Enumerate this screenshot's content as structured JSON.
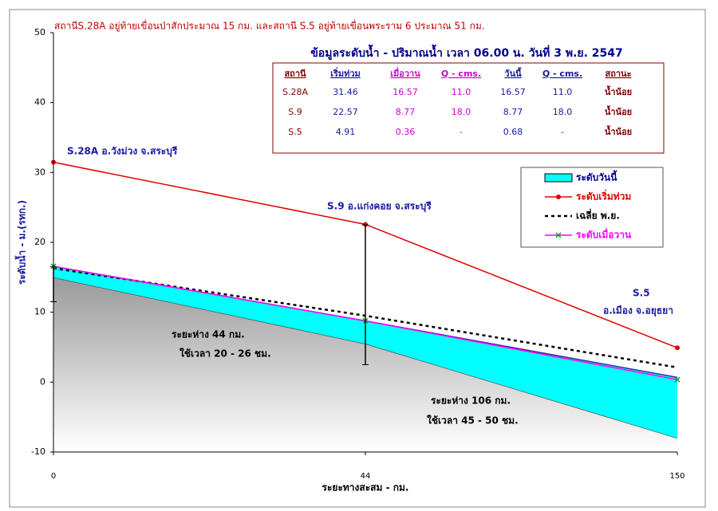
{
  "title": "สถานีS.28A อยู่ท้ายเขื่อนป่าสักประมาณ 15 กม. และสถานี S.5 อยู่ท้ายเขื่อนพระราม 6  ประมาณ 51 กม.",
  "chart_data": {
    "type": "line",
    "categories": [
      "0",
      "44",
      "150"
    ],
    "x_label": "ระยะทางสะสม - กม.",
    "y_label": "ระดับน้ำ - ม.(รทก.)",
    "ylim": [
      -10,
      50
    ],
    "yticks": [
      -10,
      0,
      10,
      20,
      30,
      40,
      50
    ],
    "series": [
      {
        "name": "ระดับวันนี้",
        "type": "area",
        "color": "#00ffff",
        "values": [
          16.57,
          8.77,
          0.68
        ]
      },
      {
        "name": "ระดับเริ่มท่วม",
        "type": "line",
        "color": "#e00000",
        "values": [
          31.46,
          22.57,
          4.91
        ]
      },
      {
        "name": "เฉลี่ย พ.ย.",
        "type": "dashed",
        "color": "#000000",
        "values": [
          16.3,
          9.5,
          2.1
        ]
      },
      {
        "name": "ระดับเมื่อวาน",
        "type": "line",
        "color": "#ff00ff",
        "values": [
          16.57,
          8.77,
          0.36
        ]
      }
    ],
    "riverbed": [
      15,
      5.5,
      -8
    ],
    "range_bars": [
      [
        11.5,
        16.5
      ],
      [
        2.5,
        22.5
      ],
      null
    ],
    "annotations": [
      "S.28A  อ.วังม่วง  จ.สระบุรี",
      "S.9  อ.แก่งคอย  จ.สระบุรี",
      "S.5",
      "อ.เมือง  จ.อยุธยา",
      "ระยะห่าง  44  กม.",
      "ใช้เวลา  20 - 26  ชม.",
      "ระยะห่าง 106  กม.",
      "ใช้เวลา  45 - 50  ชม."
    ]
  },
  "table": {
    "title": "ข้อมูลระดับน้ำ - ปริมาณน้ำ เวลา 06.00 น. วันที่ 3 พ.ย. 2547",
    "header": [
      "สถานี",
      "เริ่มท่วม",
      "เมื่อวาน",
      "Q - cms.",
      "วันนี้",
      "Q - cms.",
      "สถานะ"
    ],
    "rows": [
      [
        "S.28A",
        "31.46",
        "16.57",
        "11.0",
        "16.57",
        "11.0",
        "น้ำน้อย"
      ],
      [
        "S.9",
        "22.57",
        "8.77",
        "18.0",
        "8.77",
        "18.0",
        "น้ำน้อย"
      ],
      [
        "S.5",
        "4.91",
        "0.36",
        "-",
        "0.68",
        "-",
        "น้ำน้อย"
      ]
    ]
  }
}
